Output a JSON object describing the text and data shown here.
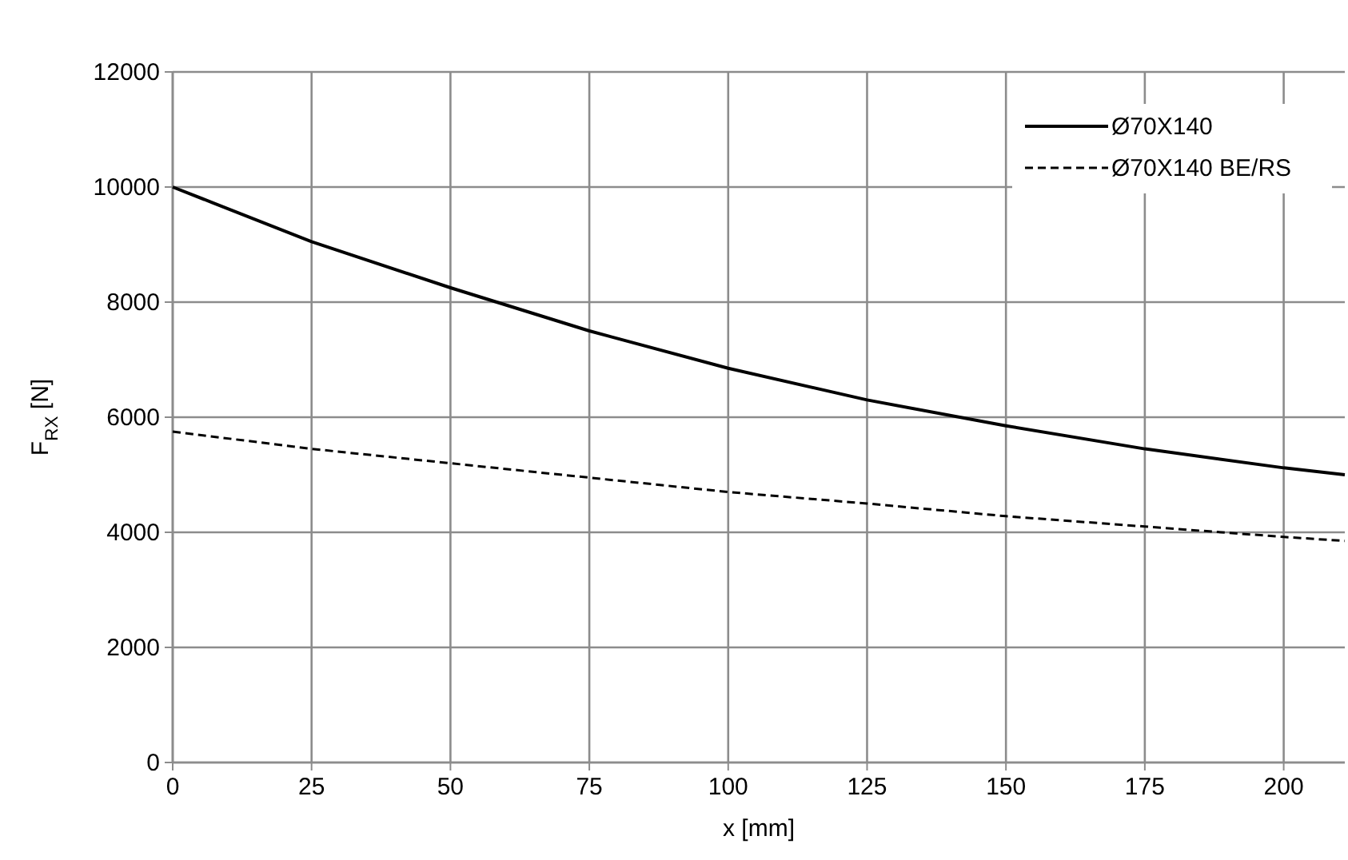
{
  "chart_data": {
    "type": "line",
    "xlabel": "x [mm]",
    "ylabel": "F$_{RX}$ [N]",
    "xlim": [
      0,
      211
    ],
    "xticks": [
      0,
      25,
      50,
      75,
      100,
      125,
      150,
      175,
      200
    ],
    "ylim": [
      0,
      12000
    ],
    "yticks": [
      0,
      2000,
      4000,
      6000,
      8000,
      10000,
      12000
    ],
    "grid": true,
    "legend": "top right",
    "marker": "none",
    "series": [
      {
        "name": "Ø70X140",
        "color": "#000000",
        "line_style": "solid",
        "x": [
          0,
          25,
          50,
          75,
          100,
          125,
          150,
          175,
          200,
          211
        ],
        "values": [
          10000,
          9050,
          8250,
          7500,
          6850,
          6300,
          5850,
          5450,
          5120,
          5000
        ]
      },
      {
        "name": "Ø70X140 BE/RS",
        "color": "#000000",
        "line_style": "dashed",
        "x": [
          0,
          25,
          50,
          75,
          100,
          125,
          150,
          175,
          200,
          211
        ],
        "values": [
          5750,
          5450,
          5200,
          4950,
          4700,
          4500,
          4280,
          4100,
          3920,
          3850
        ]
      }
    ]
  }
}
